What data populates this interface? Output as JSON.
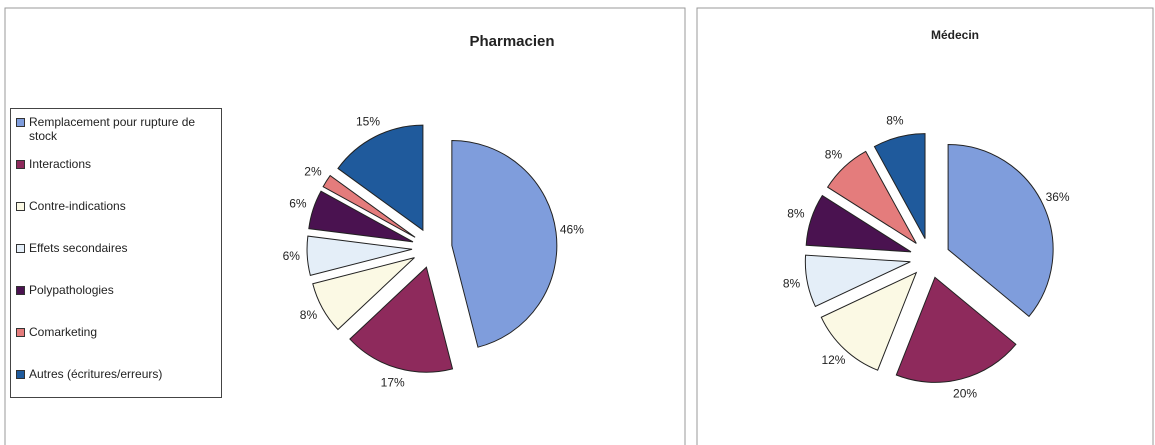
{
  "chart_data": [
    {
      "type": "pie",
      "title": "Pharmacien",
      "categories": [
        "Remplacement pour rupture de stock",
        "Interactions",
        "Contre-indications",
        "Effets secondaires",
        "Polypathologies",
        "Comarketing",
        "Autres (écritures/erreurs)"
      ],
      "values": [
        46,
        17,
        8,
        6,
        6,
        2,
        15
      ],
      "value_labels": [
        "46%",
        "17%",
        "8%",
        "6%",
        "6%",
        "2%",
        "15%"
      ],
      "colors": [
        "#7f9ddc",
        "#8e2a5c",
        "#fbf9e4",
        "#e4eef8",
        "#4a1250",
        "#e47c7c",
        "#1f5a9c"
      ],
      "legend": "left"
    },
    {
      "type": "pie",
      "title": "Médecin",
      "values": [
        36,
        20,
        12,
        8,
        8,
        8,
        8
      ],
      "value_labels": [
        "36%",
        "20%",
        "12%",
        "8%",
        "8%",
        "8%",
        "8%"
      ],
      "colors": [
        "#7f9ddc",
        "#8e2a5c",
        "#fbf9e4",
        "#e4eef8",
        "#4a1250",
        "#e47c7c",
        "#1f5a9c"
      ]
    }
  ]
}
